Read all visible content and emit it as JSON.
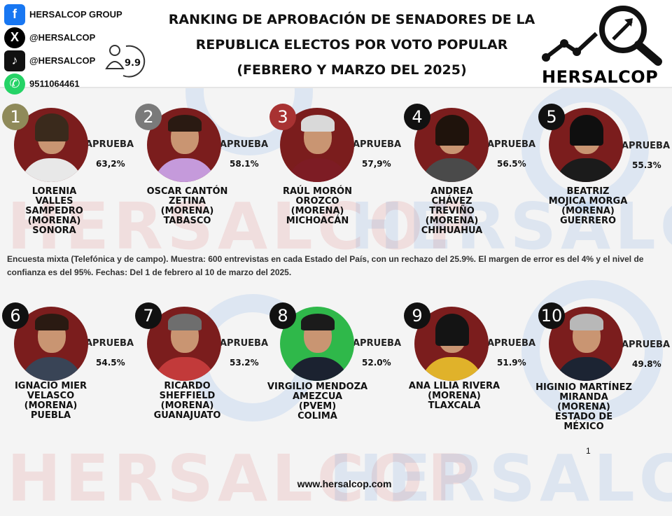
{
  "header": {
    "social": [
      {
        "icon": "facebook-icon",
        "glyph": "f",
        "label": "HERSALCOP GROUP"
      },
      {
        "icon": "x-icon",
        "glyph": "X",
        "label": "@HERSALCOP"
      },
      {
        "icon": "tiktok-icon",
        "glyph": "♪",
        "label": "@HERSALCOP"
      },
      {
        "icon": "whatsapp-icon",
        "glyph": "✆",
        "label": "9511064461"
      }
    ],
    "badge_value": "9.9",
    "title_lines": [
      "RANKING DE APROBACIÓN DE SENADORES DE LA",
      "REPUBLICA ELECTOS POR VOTO POPULAR",
      "(FEBRERO Y MARZO DEL 2025)"
    ],
    "logo_text": "HERSALCOP"
  },
  "colors": {
    "rank1": "#8f8a5a",
    "rank2": "#7a7a7a",
    "rank3": "#a83232",
    "dark": "#111111",
    "photo_bg": "#7b1d1d",
    "green": "#2fb84a",
    "watermark_red": "#d62828",
    "watermark_blue": "#1f6fd0"
  },
  "candidates": [
    {
      "rank": "1",
      "label": "APRUEBA",
      "pct": "63,2%",
      "name": [
        "LORENIA",
        "VALLES",
        "SAMPEDRO",
        "(MORENA)",
        "SONORA"
      ]
    },
    {
      "rank": "2",
      "label": "APRUEBA",
      "pct": "58.1%",
      "name": [
        "OSCAR CANTÓN",
        "ZETINA",
        "(MORENA)",
        "TABASCO"
      ]
    },
    {
      "rank": "3",
      "label": "APRUEBA",
      "pct": "57,9%",
      "name": [
        "RAÚL MORÓN",
        "OROZCO",
        "(MORENA)",
        "MICHOACÁN"
      ]
    },
    {
      "rank": "4",
      "label": "APRUEBA",
      "pct": "56.5%",
      "name": [
        "ANDREA",
        "CHÁVEZ",
        "TREVIÑO",
        "(MORENA)",
        "CHIHUAHUA"
      ]
    },
    {
      "rank": "5",
      "label": "APRUEBA",
      "pct": "55.3%",
      "name": [
        "BEATRIZ",
        "MOJICA MORGA",
        "(MORENA)",
        "GUERRERO"
      ]
    },
    {
      "rank": "6",
      "label": "APRUEBA",
      "pct": "54.5%",
      "name": [
        "IGNACIO MIER",
        "VELASCO",
        "(MORENA)",
        "PUEBLA"
      ]
    },
    {
      "rank": "7",
      "label": "APRUEBA",
      "pct": "53.2%",
      "name": [
        "RICARDO",
        "SHEFFIELD",
        "(MORENA)",
        "GUANAJUATO"
      ]
    },
    {
      "rank": "8",
      "label": "APRUEBA",
      "pct": "52.0%",
      "name": [
        "VIRGILIO MENDOZA",
        "AMEZCUA",
        "(PVEM)",
        "COLIMA"
      ]
    },
    {
      "rank": "9",
      "label": "APRUEBA",
      "pct": "51.9%",
      "name": [
        "ANA LILIA RIVERA",
        "(MORENA)",
        "TLAXCALA"
      ]
    },
    {
      "rank": "10",
      "label": "APRUEBA",
      "pct": "49.8%",
      "name": [
        "HIGINIO MARTÍNEZ",
        "MIRANDA",
        "(MORENA)",
        "ESTADO DE",
        "MÉXICO"
      ]
    }
  ],
  "methodology_note": "Encuesta mixta (Telefónica y de campo). Muestra: 600 entrevistas en cada Estado del País, con un rechazo del 25.9%. El margen de error es del 4% y el nivel de confianza es del 95%. Fechas: Del 1 de febrero al 10 de marzo del 2025.",
  "page_number": "1",
  "website": "www.hersalcop.com",
  "watermark": "HERSALCOP"
}
